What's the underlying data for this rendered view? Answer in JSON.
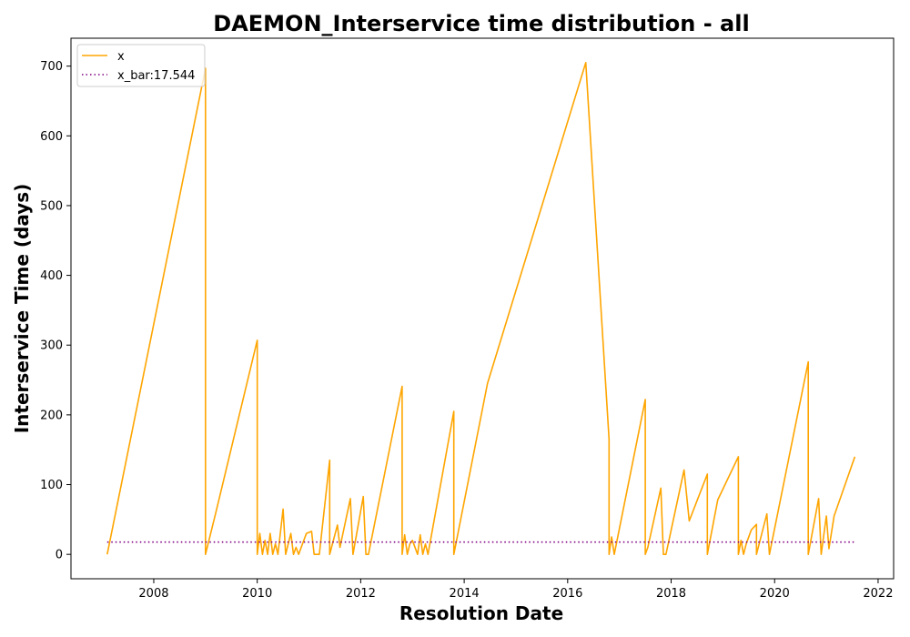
{
  "chart_data": {
    "type": "line",
    "title": "DAEMON_Interservice time distribution - all",
    "xlabel": "Resolution Date",
    "ylabel": "Interservice Time (days)",
    "xlim": [
      2006.4,
      2022.3
    ],
    "ylim": [
      -35,
      740
    ],
    "x_ticks": [
      2008,
      2010,
      2012,
      2014,
      2016,
      2018,
      2020,
      2022
    ],
    "y_ticks": [
      0,
      100,
      200,
      300,
      400,
      500,
      600,
      700
    ],
    "grid": false,
    "legend_position": "top-left",
    "colors": {
      "x": "#ffa500",
      "x_bar": "#800080"
    },
    "series": [
      {
        "name": "x",
        "style": "solid",
        "x": [
          2007.1,
          2009.0,
          2009.0,
          2009.2,
          2010.0,
          2010.0,
          2010.05,
          2010.1,
          2010.15,
          2010.2,
          2010.25,
          2010.3,
          2010.35,
          2010.4,
          2010.5,
          2010.55,
          2010.65,
          2010.7,
          2010.75,
          2010.8,
          2010.85,
          2010.95,
          2011.05,
          2011.1,
          2011.2,
          2011.4,
          2011.4,
          2011.55,
          2011.6,
          2011.8,
          2011.85,
          2012.05,
          2012.1,
          2012.15,
          2012.8,
          2012.8,
          2012.85,
          2012.9,
          2012.95,
          2013.0,
          2013.1,
          2013.15,
          2013.2,
          2013.25,
          2013.3,
          2013.8,
          2013.8,
          2014.45,
          2016.35,
          2016.8,
          2016.8,
          2016.85,
          2016.9,
          2017.5,
          2017.5,
          2017.55,
          2017.8,
          2017.85,
          2017.9,
          2018.25,
          2018.35,
          2018.7,
          2018.7,
          2018.9,
          2019.3,
          2019.3,
          2019.35,
          2019.4,
          2019.45,
          2019.55,
          2019.65,
          2019.65,
          2019.85,
          2019.9,
          2020.65,
          2020.65,
          2020.85,
          2020.9,
          2021.0,
          2021.05,
          2021.15,
          2021.55
        ],
        "y": [
          0,
          697,
          0,
          60,
          307,
          0,
          30,
          0,
          20,
          0,
          30,
          0,
          15,
          0,
          65,
          0,
          30,
          0,
          10,
          0,
          10,
          30,
          33,
          0,
          0,
          135,
          0,
          42,
          10,
          80,
          0,
          83,
          0,
          0,
          241,
          0,
          28,
          0,
          15,
          20,
          0,
          28,
          0,
          15,
          0,
          205,
          0,
          245,
          705,
          165,
          0,
          25,
          0,
          222,
          0,
          10,
          95,
          0,
          0,
          121,
          48,
          115,
          0,
          78,
          140,
          0,
          20,
          0,
          15,
          35,
          43,
          0,
          58,
          0,
          276,
          0,
          80,
          0,
          55,
          8,
          55,
          140
        ]
      },
      {
        "name": "x_bar:17.544",
        "style": "dotted",
        "x": [
          2007.1,
          2021.55
        ],
        "y": [
          17.544,
          17.544
        ]
      }
    ]
  }
}
